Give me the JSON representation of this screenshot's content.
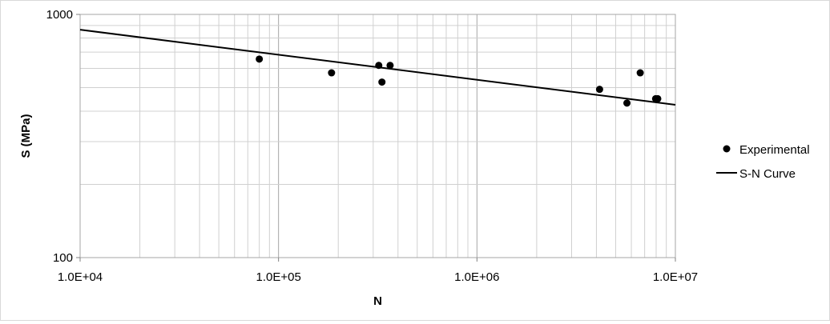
{
  "chart_data": {
    "type": "scatter",
    "title": "",
    "xlabel": "N",
    "ylabel": "S (MPa)",
    "x_scale": "log",
    "y_scale": "log",
    "xlim": [
      10000,
      10000000
    ],
    "ylim": [
      100,
      1000
    ],
    "grid": true,
    "legend_position": "right",
    "x_ticks": [
      "1.0E+04",
      "1.0E+05",
      "1.0E+06",
      "1.0E+07"
    ],
    "y_ticks": [
      "100",
      "1000"
    ],
    "series": [
      {
        "name": "Experimental",
        "kind": "scatter",
        "color": "#000000",
        "x": [
          80000,
          185000,
          320000,
          332000,
          365000,
          4150000,
          5700000,
          6650000,
          7950000,
          8150000
        ],
        "y": [
          655,
          575,
          617,
          527,
          617,
          492,
          432,
          575,
          450,
          450
        ]
      },
      {
        "name": "S-N Curve",
        "kind": "line",
        "color": "#000000",
        "x": [
          10000,
          10000000
        ],
        "y": [
          865,
          425
        ]
      }
    ]
  }
}
